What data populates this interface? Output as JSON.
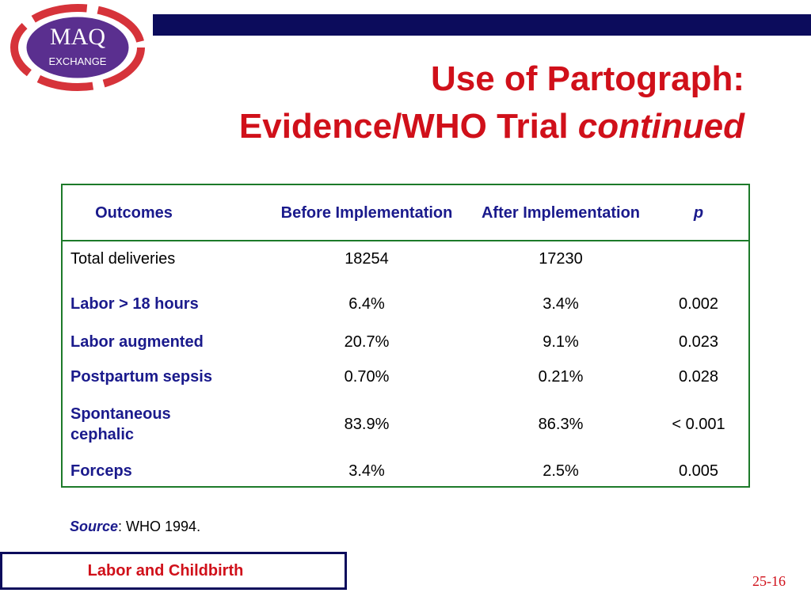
{
  "logo": {
    "top": "MAQ",
    "bottom": "EXCHANGE"
  },
  "title": {
    "line1": "Use of Partograph:",
    "line2": "Evidence/WHO Trial",
    "line2_italic": "continued"
  },
  "table": {
    "header": [
      "Outcomes",
      "Before Implementation",
      "After Implementation",
      "p"
    ],
    "rows": [
      [
        "Total deliveries",
        "18254",
        "17230"
      ],
      [
        "Labor > 18 hours",
        "6.4%",
        "3.4%",
        "0.002"
      ],
      [
        "Labor augmented",
        "20.7%",
        "9.1%",
        "0.023"
      ],
      [
        "Postpartum sepsis",
        "0.70%",
        "0.21%",
        "0.028"
      ],
      [
        "Spontaneous cephalic",
        "83.9%",
        "86.3%",
        "< 0.001"
      ],
      [
        "Forceps",
        "3.4%",
        "2.5%",
        "0.005"
      ]
    ]
  },
  "source": {
    "label": "Source",
    "text": ": WHO 1994."
  },
  "footer": {
    "section": "Labor and Childbirth",
    "page": "25-16"
  }
}
